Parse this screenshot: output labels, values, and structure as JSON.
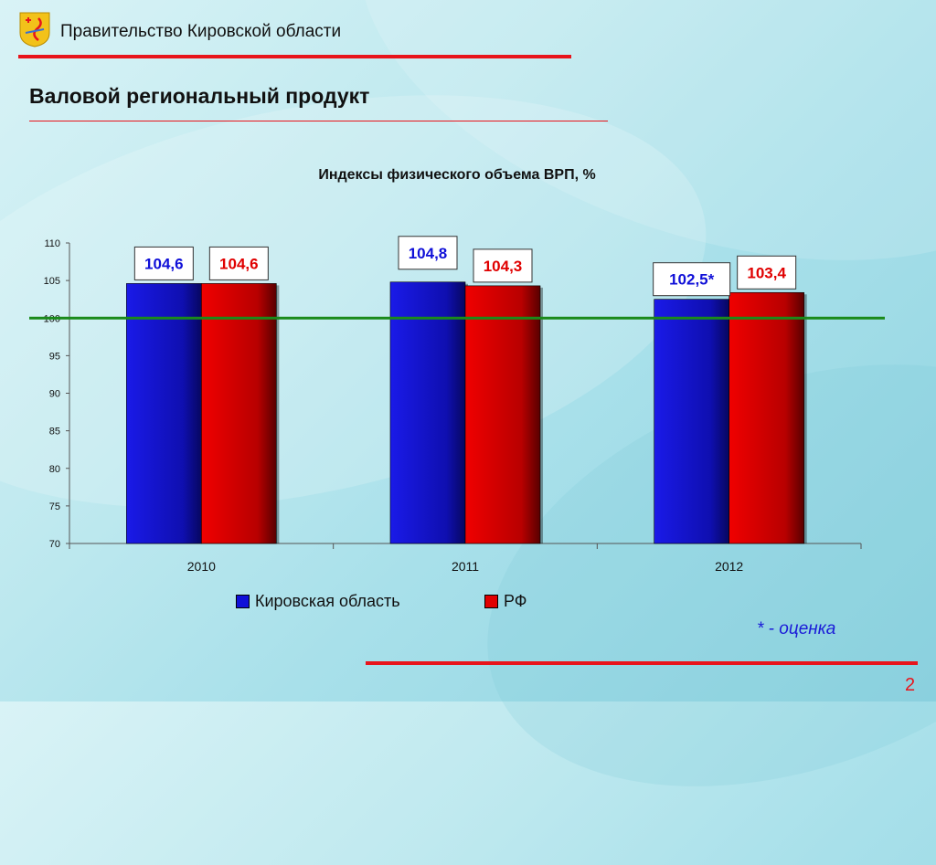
{
  "header": {
    "org_title": "Правительство Кировской области",
    "page_title": "Валовой региональный продукт"
  },
  "colors": {
    "accent_red": "#e8141b",
    "kirov_blue": "#1010d8",
    "rf_red": "#e00000",
    "baseline_green": "#1a8a1a"
  },
  "logo": {
    "icon": "kirov-coat-of-arms-icon"
  },
  "chart_data": {
    "type": "bar",
    "title": "Индексы физического объема ВРП, %",
    "categories": [
      "2010",
      "2011",
      "2012"
    ],
    "series": [
      {
        "name": "Кировская область",
        "values": [
          104.6,
          104.8,
          102.5
        ],
        "labels": [
          "104,6",
          "104,8",
          "102,5*"
        ],
        "color": "#1010d8"
      },
      {
        "name": "РФ",
        "values": [
          104.6,
          104.3,
          103.4
        ],
        "labels": [
          "104,6",
          "104,3",
          "103,4"
        ],
        "color": "#e00000"
      }
    ],
    "ylim": [
      70,
      110
    ],
    "yticks": [
      70,
      75,
      80,
      85,
      90,
      95,
      100,
      105,
      110
    ],
    "reference_line": 100,
    "legend_position": "bottom",
    "grid": false
  },
  "footnote": "* - оценка",
  "page_number": "2"
}
